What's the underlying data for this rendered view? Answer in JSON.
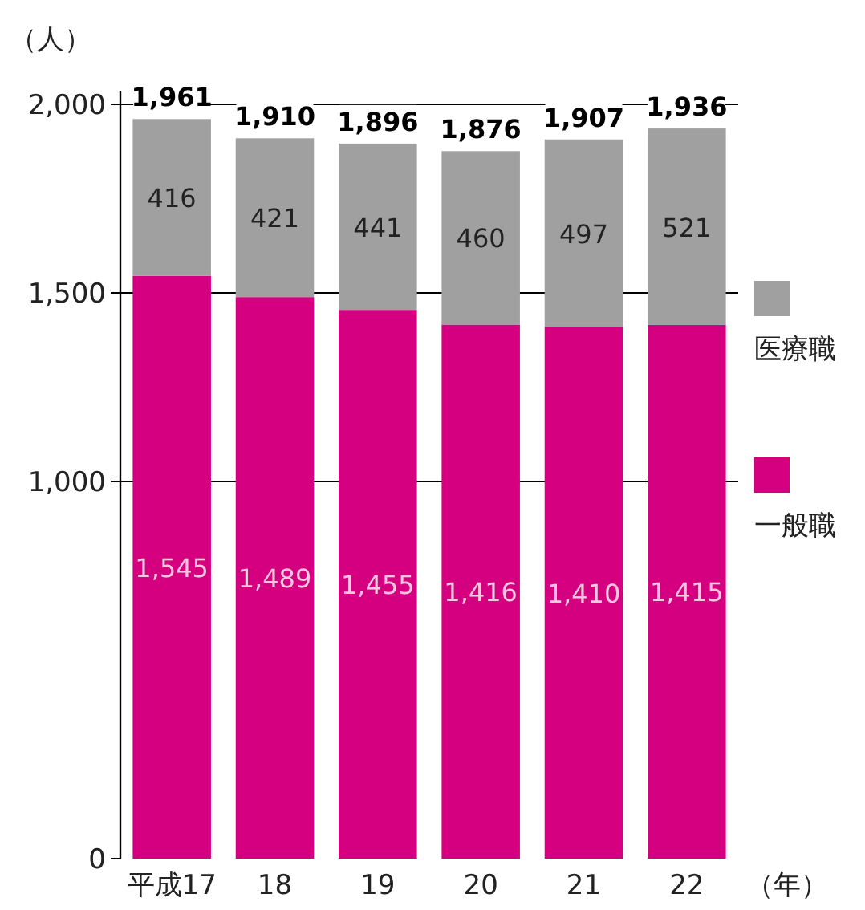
{
  "chart_data": {
    "type": "bar",
    "stacked": true,
    "ylabel": "（人）",
    "xlabel": "（年）",
    "categories": [
      "平成17",
      "18",
      "19",
      "20",
      "21",
      "22"
    ],
    "series": [
      {
        "name": "一般職",
        "color": "#d4007f",
        "values": [
          1545,
          1489,
          1455,
          1416,
          1410,
          1415
        ],
        "value_labels": [
          "1,545",
          "1,489",
          "1,455",
          "1,416",
          "1,410",
          "1,415"
        ]
      },
      {
        "name": "医療職",
        "color": "#a0a0a0",
        "values": [
          416,
          421,
          441,
          460,
          497,
          521
        ]
      }
    ],
    "totals": [
      "1,961",
      "1,910",
      "1,896",
      "1,876",
      "1,907",
      "1,936"
    ],
    "data_labels": true,
    "ylim": [
      0,
      2000
    ],
    "yticks": [
      0,
      {
        "value": 1000,
        "label": "1,000"
      },
      {
        "value": 1500,
        "label": "1,500"
      },
      {
        "value": 2000,
        "label": "2,000"
      }
    ],
    "grid": "y",
    "legend": "right"
  }
}
